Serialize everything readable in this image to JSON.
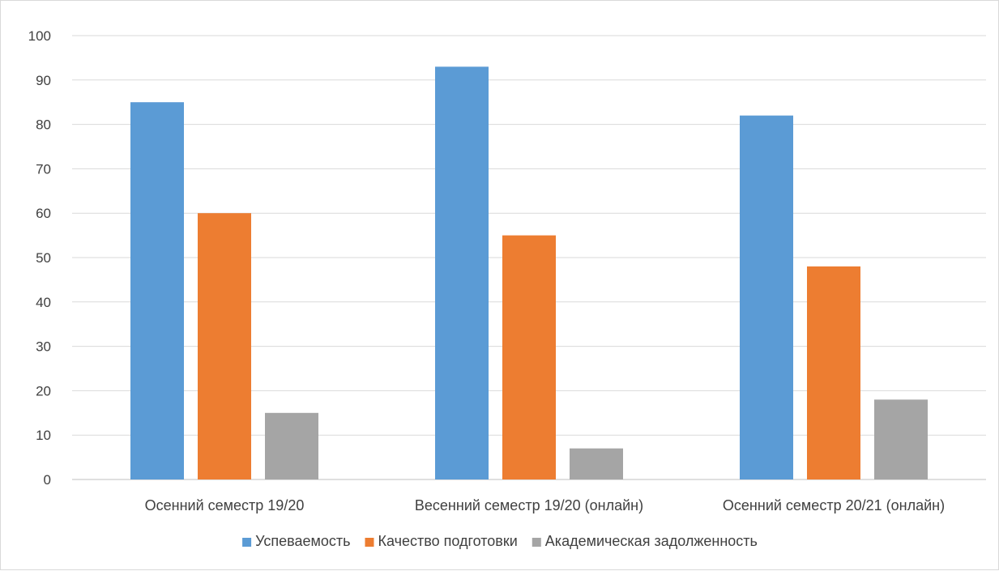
{
  "chart_data": {
    "type": "bar",
    "categories": [
      "Осенний семестр 19/20",
      "Весенний семестр 19/20 (онлайн)",
      "Осенний семестр 20/21 (онлайн)"
    ],
    "series": [
      {
        "name": "Успеваемость",
        "values": [
          85,
          93,
          82
        ],
        "color": "#5b9bd5"
      },
      {
        "name": "Качество подготовки",
        "values": [
          60,
          55,
          48
        ],
        "color": "#ed7d31"
      },
      {
        "name": "Академическая задолженность",
        "values": [
          15,
          7,
          18
        ],
        "color": "#a5a5a5"
      }
    ],
    "y_ticks": [
      "0",
      "10",
      "20",
      "30",
      "40",
      "50",
      "60",
      "70",
      "80",
      "90",
      "100"
    ],
    "ylim": [
      0,
      100
    ],
    "title": "",
    "xlabel": "",
    "ylabel": "",
    "grid": true,
    "legend_position": "bottom"
  }
}
